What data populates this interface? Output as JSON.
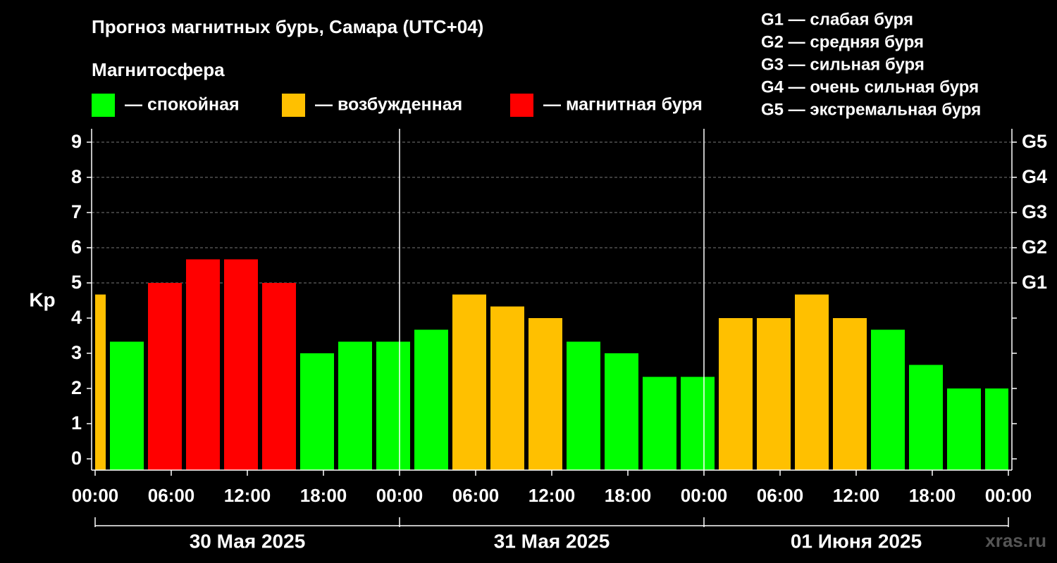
{
  "chart_data": {
    "type": "bar",
    "title": "Прогноз магнитных бурь, Самара (UTC+04)",
    "legend_title": "Магнитосфера",
    "legend": [
      {
        "name": "— спокойная",
        "color": "#00ff00"
      },
      {
        "name": "— возбужденная",
        "color": "#ffc000"
      },
      {
        "name": "— магнитная буря",
        "color": "#ff0000"
      }
    ],
    "scale_notes": [
      "G1 — слабая буря",
      "G2 — средняя буря",
      "G3 — сильная буря",
      "G4 — очень сильная буря",
      "G5 — экстремальная буря"
    ],
    "ylabel": "Kp",
    "values": [
      4.67,
      3.33,
      5,
      5.67,
      5.67,
      5,
      3,
      3.33,
      3.33,
      3.67,
      4.67,
      4.33,
      4,
      3.33,
      3,
      2.33,
      2.33,
      4,
      4,
      4.67,
      4,
      3.67,
      2.67,
      2,
      2
    ],
    "colors": [
      "#ffc000",
      "#00ff00",
      "#ff0000",
      "#ff0000",
      "#ff0000",
      "#ff0000",
      "#00ff00",
      "#00ff00",
      "#00ff00",
      "#00ff00",
      "#ffc000",
      "#ffc000",
      "#ffc000",
      "#00ff00",
      "#00ff00",
      "#00ff00",
      "#00ff00",
      "#ffc000",
      "#ffc000",
      "#ffc000",
      "#ffc000",
      "#00ff00",
      "#00ff00",
      "#00ff00",
      "#00ff00"
    ],
    "ylim": [
      -0.32,
      9.38
    ],
    "yticks": [
      0,
      1,
      2,
      3,
      4,
      5,
      6,
      7,
      8,
      9
    ],
    "y2ticks": [
      {
        "value": 5,
        "label": "G1"
      },
      {
        "value": 6,
        "label": "G2"
      },
      {
        "value": 7,
        "label": "G3"
      },
      {
        "value": 8,
        "label": "G4"
      },
      {
        "value": 9,
        "label": "G5"
      }
    ],
    "xlim": [
      0,
      72
    ],
    "xticks": [
      {
        "value": 0,
        "label": "00:00"
      },
      {
        "value": 6,
        "label": "06:00"
      },
      {
        "value": 12,
        "label": "12:00"
      },
      {
        "value": 18,
        "label": "18:00"
      },
      {
        "value": 24,
        "label": "00:00"
      },
      {
        "value": 30,
        "label": "06:00"
      },
      {
        "value": 36,
        "label": "12:00"
      },
      {
        "value": 42,
        "label": "18:00"
      },
      {
        "value": 48,
        "label": "00:00"
      },
      {
        "value": 54,
        "label": "06:00"
      },
      {
        "value": 60,
        "label": "12:00"
      },
      {
        "value": 66,
        "label": "18:00"
      },
      {
        "value": 72,
        "label": "00:00"
      }
    ],
    "days": [
      "30 Мая 2025",
      "31 Мая 2025",
      "01 Июня 2025"
    ],
    "watermark": "xras.ru"
  }
}
